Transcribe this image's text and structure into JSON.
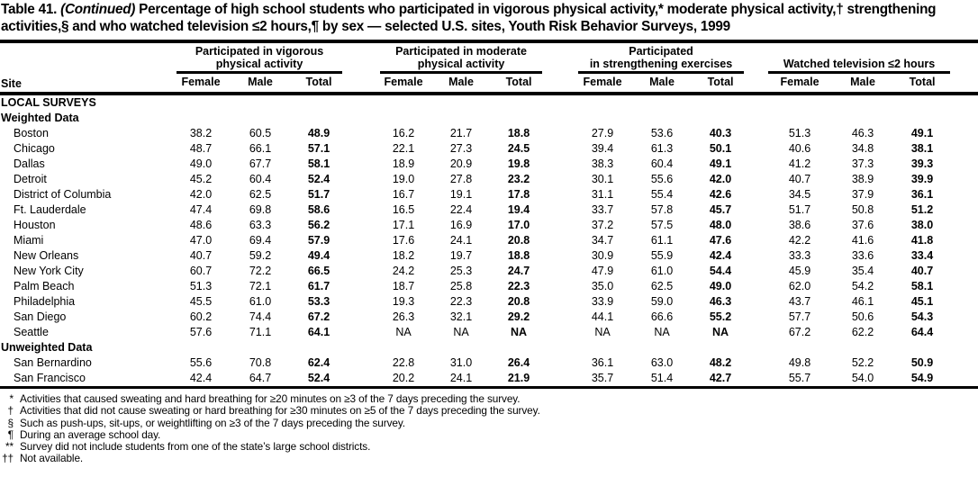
{
  "title": {
    "prefix": "Table 41.",
    "continued": "(Continued)",
    "body": "Percentage of high school students who participated in vigorous physical activity,* moderate physical activity,† strengthening activities,§ and who watched television ≤2 hours,¶ by sex — selected U.S. sites, Youth Risk Behavior Surveys, 1999"
  },
  "table": {
    "site_header": "Site",
    "groups": [
      {
        "line1": "Participated in vigorous",
        "line2": "physical activity"
      },
      {
        "line1": "Participated in moderate",
        "line2": "physical activity"
      },
      {
        "line1": "Participated",
        "line2": "in strengthening exercises"
      },
      {
        "line1": "",
        "line2": "Watched television ≤2 hours"
      }
    ],
    "sub_headers": [
      "Female",
      "Male",
      "Total"
    ],
    "rows": [
      {
        "type": "section",
        "label": "LOCAL SURVEYS"
      },
      {
        "type": "section",
        "label": "Weighted Data"
      },
      {
        "type": "data",
        "site": "Boston",
        "values": [
          "38.2",
          "60.5",
          "48.9",
          "16.2",
          "21.7",
          "18.8",
          "27.9",
          "53.6",
          "40.3",
          "51.3",
          "46.3",
          "49.1"
        ]
      },
      {
        "type": "data",
        "site": "Chicago",
        "values": [
          "48.7",
          "66.1",
          "57.1",
          "22.1",
          "27.3",
          "24.5",
          "39.4",
          "61.3",
          "50.1",
          "40.6",
          "34.8",
          "38.1"
        ]
      },
      {
        "type": "data",
        "site": "Dallas",
        "values": [
          "49.0",
          "67.7",
          "58.1",
          "18.9",
          "20.9",
          "19.8",
          "38.3",
          "60.4",
          "49.1",
          "41.2",
          "37.3",
          "39.3"
        ]
      },
      {
        "type": "data",
        "site": "Detroit",
        "values": [
          "45.2",
          "60.4",
          "52.4",
          "19.0",
          "27.8",
          "23.2",
          "30.1",
          "55.6",
          "42.0",
          "40.7",
          "38.9",
          "39.9"
        ]
      },
      {
        "type": "data",
        "site": "District of Columbia",
        "values": [
          "42.0",
          "62.5",
          "51.7",
          "16.7",
          "19.1",
          "17.8",
          "31.1",
          "55.4",
          "42.6",
          "34.5",
          "37.9",
          "36.1"
        ]
      },
      {
        "type": "data",
        "site": "Ft. Lauderdale",
        "values": [
          "47.4",
          "69.8",
          "58.6",
          "16.5",
          "22.4",
          "19.4",
          "33.7",
          "57.8",
          "45.7",
          "51.7",
          "50.8",
          "51.2"
        ]
      },
      {
        "type": "data",
        "site": "Houston",
        "values": [
          "48.6",
          "63.3",
          "56.2",
          "17.1",
          "16.9",
          "17.0",
          "37.2",
          "57.5",
          "48.0",
          "38.6",
          "37.6",
          "38.0"
        ]
      },
      {
        "type": "data",
        "site": "Miami",
        "values": [
          "47.0",
          "69.4",
          "57.9",
          "17.6",
          "24.1",
          "20.8",
          "34.7",
          "61.1",
          "47.6",
          "42.2",
          "41.6",
          "41.8"
        ]
      },
      {
        "type": "data",
        "site": "New Orleans",
        "values": [
          "40.7",
          "59.2",
          "49.4",
          "18.2",
          "19.7",
          "18.8",
          "30.9",
          "55.9",
          "42.4",
          "33.3",
          "33.6",
          "33.4"
        ]
      },
      {
        "type": "data",
        "site": "New York City",
        "values": [
          "60.7",
          "72.2",
          "66.5",
          "24.2",
          "25.3",
          "24.7",
          "47.9",
          "61.0",
          "54.4",
          "45.9",
          "35.4",
          "40.7"
        ]
      },
      {
        "type": "data",
        "site": "Palm Beach",
        "values": [
          "51.3",
          "72.1",
          "61.7",
          "18.7",
          "25.8",
          "22.3",
          "35.0",
          "62.5",
          "49.0",
          "62.0",
          "54.2",
          "58.1"
        ]
      },
      {
        "type": "data",
        "site": "Philadelphia",
        "values": [
          "45.5",
          "61.0",
          "53.3",
          "19.3",
          "22.3",
          "20.8",
          "33.9",
          "59.0",
          "46.3",
          "43.7",
          "46.1",
          "45.1"
        ]
      },
      {
        "type": "data",
        "site": "San Diego",
        "values": [
          "60.2",
          "74.4",
          "67.2",
          "26.3",
          "32.1",
          "29.2",
          "44.1",
          "66.6",
          "55.2",
          "57.7",
          "50.6",
          "54.3"
        ]
      },
      {
        "type": "data",
        "site": "Seattle",
        "values": [
          "57.6",
          "71.1",
          "64.1",
          "NA",
          "NA",
          "NA",
          "NA",
          "NA",
          "NA",
          "67.2",
          "62.2",
          "64.4"
        ]
      },
      {
        "type": "section",
        "label": "Unweighted Data"
      },
      {
        "type": "data",
        "site": "San Bernardino",
        "values": [
          "55.6",
          "70.8",
          "62.4",
          "22.8",
          "31.0",
          "26.4",
          "36.1",
          "63.0",
          "48.2",
          "49.8",
          "52.2",
          "50.9"
        ]
      },
      {
        "type": "data",
        "site": "San Francisco",
        "values": [
          "42.4",
          "64.7",
          "52.4",
          "20.2",
          "24.1",
          "21.9",
          "35.7",
          "51.4",
          "42.7",
          "55.7",
          "54.0",
          "54.9"
        ]
      }
    ]
  },
  "footnotes": [
    {
      "marker": "*",
      "text": "Activities that caused sweating and hard breathing for ≥20 minutes on ≥3 of the 7 days preceding the survey."
    },
    {
      "marker": "†",
      "text": "Activities that did not cause sweating or hard breathing for ≥30 minutes on ≥5 of the 7 days preceding the survey."
    },
    {
      "marker": "§",
      "text": "Such as push-ups, sit-ups, or weightlifting on ≥3 of the 7 days preceding the survey."
    },
    {
      "marker": "¶",
      "text": "During an average school day."
    },
    {
      "marker": "**",
      "text": "Survey did not include students from one of the state’s large school districts."
    },
    {
      "marker": "††",
      "text": "Not available."
    }
  ],
  "colors": {
    "text": "#000000",
    "background": "#ffffff",
    "rule": "#000000"
  }
}
